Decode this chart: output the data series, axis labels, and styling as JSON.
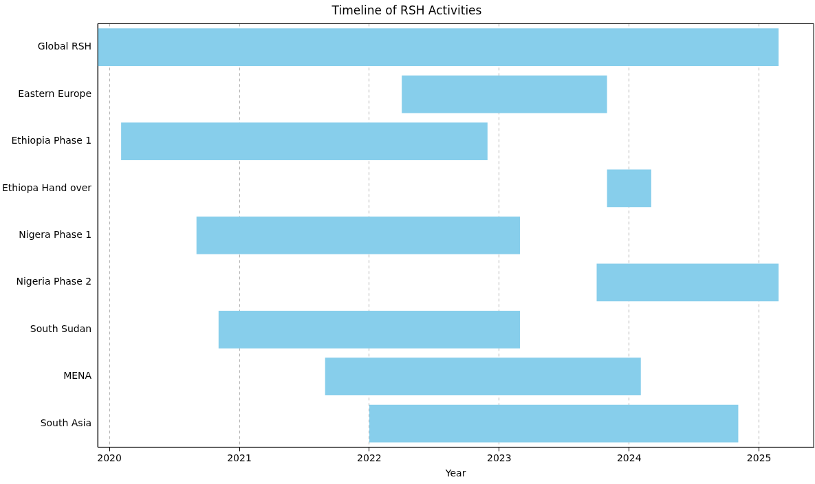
{
  "chart_data": {
    "type": "bar",
    "title": "Timeline of RSH Activities",
    "xlabel": "Year",
    "orientation": "horizontal",
    "categories": [
      "Global RSH",
      "Eastern Europe",
      "Ethiopia Phase 1",
      "Ethiopa Hand over",
      "Nigera Phase 1",
      "Nigeria Phase 2",
      "South Sudan",
      "MENA",
      "South Asia"
    ],
    "base": [
      2019.91,
      2022.25,
      2020.09,
      2023.83,
      2020.67,
      2023.75,
      2020.84,
      2021.66,
      2022.0
    ],
    "values": [
      5.24,
      1.58,
      2.82,
      0.34,
      2.49,
      1.4,
      2.32,
      2.43,
      2.84
    ],
    "color": "#87ceeb",
    "xlim": [
      2019.91,
      2025.42
    ],
    "xticks": [
      2020,
      2021,
      2022,
      2023,
      2024,
      2025
    ],
    "grid": "x"
  }
}
